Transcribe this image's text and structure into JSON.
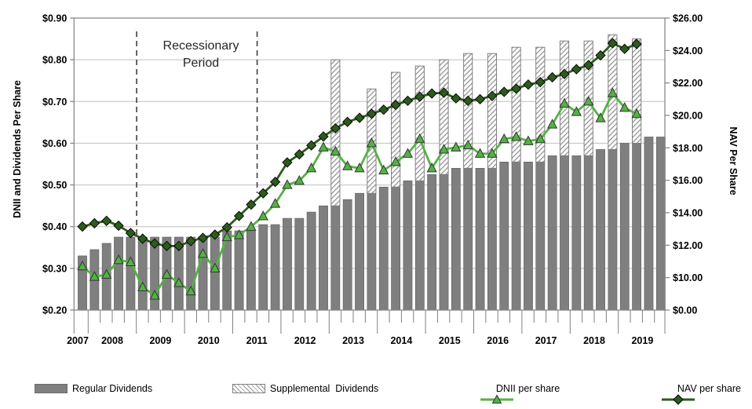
{
  "chart_data": {
    "type": "combo-bar-line",
    "title": "",
    "ylabel_left": "DNII and Dividends Per Share",
    "ylabel_right": "NAV Per Share",
    "left_axis": {
      "min": 0.2,
      "max": 0.9,
      "step": 0.1,
      "tick_labels": [
        "$0.90",
        "$0.80",
        "$0.70",
        "$0.60",
        "$0.50",
        "$0.40",
        "$0.30",
        "$0.20"
      ]
    },
    "right_axis": {
      "tick_labels": [
        "$26.00",
        "$24.00",
        "$22.00",
        "$20.00",
        "$18.00",
        "$16.00",
        "$14.00",
        "$12.00",
        "$10.00",
        "$0.00"
      ],
      "note": "axis is broken below $10.00; bottom tick shows $0.00",
      "step": 2.0,
      "top_value": 26.0
    },
    "years": [
      "2007",
      "2008",
      "2009",
      "2010",
      "2011",
      "2012",
      "2013",
      "2014",
      "2015",
      "2016",
      "2017",
      "2018",
      "2019"
    ],
    "quarters": [
      "2007Q4",
      "2008Q1",
      "2008Q2",
      "2008Q3",
      "2008Q4",
      "2009Q1",
      "2009Q2",
      "2009Q3",
      "2009Q4",
      "2010Q1",
      "2010Q2",
      "2010Q3",
      "2010Q4",
      "2011Q1",
      "2011Q2",
      "2011Q3",
      "2011Q4",
      "2012Q1",
      "2012Q2",
      "2012Q3",
      "2012Q4",
      "2013Q1",
      "2013Q2",
      "2013Q3",
      "2013Q4",
      "2014Q1",
      "2014Q2",
      "2014Q3",
      "2014Q4",
      "2015Q1",
      "2015Q2",
      "2015Q3",
      "2015Q4",
      "2016Q1",
      "2016Q2",
      "2016Q3",
      "2016Q4",
      "2017Q1",
      "2017Q2",
      "2017Q3",
      "2017Q4",
      "2018Q1",
      "2018Q2",
      "2018Q3",
      "2018Q4",
      "2019Q1",
      "2019Q2",
      "2019Q3",
      "2019Q4"
    ],
    "series": [
      {
        "name": "Regular Dividends",
        "type": "bar",
        "axis": "left",
        "color": "#7f7f7f",
        "values": [
          0.33,
          0.345,
          0.36,
          0.375,
          0.375,
          0.375,
          0.375,
          0.375,
          0.375,
          0.375,
          0.375,
          0.375,
          0.39,
          0.39,
          0.39,
          0.405,
          0.405,
          0.42,
          0.42,
          0.435,
          0.45,
          0.45,
          0.465,
          0.48,
          0.48,
          0.495,
          0.495,
          0.51,
          0.51,
          0.525,
          0.525,
          0.54,
          0.54,
          0.54,
          0.54,
          0.555,
          0.555,
          0.555,
          0.555,
          0.57,
          0.57,
          0.57,
          0.57,
          0.585,
          0.585,
          0.6,
          0.6,
          0.615,
          0.615
        ]
      },
      {
        "name": "Supplemental Dividends",
        "type": "bar-stacked",
        "axis": "left",
        "style": "white-with-gray-diagonal-hatch",
        "values": [
          0,
          0,
          0,
          0,
          0,
          0,
          0,
          0,
          0,
          0,
          0,
          0,
          0,
          0,
          0,
          0,
          0,
          0,
          0,
          0,
          0,
          0.35,
          0,
          0,
          0.25,
          0,
          0.275,
          0,
          0.275,
          0,
          0.275,
          0,
          0.275,
          0,
          0.275,
          0,
          0.275,
          0,
          0.275,
          0,
          0.275,
          0,
          0.275,
          0,
          0.275,
          0,
          0.25,
          0,
          0
        ]
      },
      {
        "name": "DNII per share",
        "type": "line",
        "marker": "triangle",
        "axis": "left",
        "color": "#54b244",
        "values": [
          0.305,
          0.28,
          0.285,
          0.32,
          0.315,
          0.255,
          0.235,
          0.285,
          0.265,
          0.245,
          0.335,
          0.3,
          0.375,
          0.38,
          0.4,
          0.425,
          0.455,
          0.5,
          0.51,
          0.54,
          0.59,
          0.58,
          0.545,
          0.54,
          0.6,
          0.535,
          0.555,
          0.575,
          0.61,
          0.54,
          0.585,
          0.59,
          0.595,
          0.575,
          0.575,
          0.61,
          0.615,
          0.605,
          0.61,
          0.645,
          0.695,
          0.675,
          0.7,
          0.66,
          0.72,
          0.685,
          0.67
        ]
      },
      {
        "name": "NAV per share",
        "type": "line",
        "marker": "diamond",
        "axis": "right",
        "color": "#2d5a1d",
        "values": [
          13.15,
          13.35,
          13.5,
          13.2,
          12.75,
          12.4,
          12.1,
          11.95,
          11.95,
          12.25,
          12.45,
          12.65,
          13.1,
          13.8,
          14.5,
          15.2,
          15.9,
          17.1,
          17.6,
          18.15,
          18.7,
          19.2,
          19.6,
          19.85,
          20.1,
          20.35,
          20.65,
          20.9,
          21.15,
          21.35,
          21.4,
          21.05,
          20.9,
          21.0,
          21.2,
          21.45,
          21.65,
          21.9,
          22.05,
          22.35,
          22.55,
          22.85,
          23.1,
          23.7,
          24.45,
          24.1,
          24.4
        ]
      }
    ],
    "annotation": {
      "line1": "Recessionary",
      "line2": "Period",
      "from_after_quarter_index": 4,
      "to_after_quarter_index": 14
    },
    "colors": {
      "grid": "#bfbfbf",
      "border": "#808080",
      "bar_regular": "#7f7f7f",
      "hatch_line": "#949494",
      "dnii_line": "#54b244",
      "nav_line": "#2d5a1d",
      "text": "#000000",
      "annotation_text": "#262626",
      "dash_line": "#3f3f3f"
    },
    "grid": true,
    "legend_position": "bottom"
  },
  "legend": {
    "items": [
      {
        "label": "Regular Dividends",
        "swatch": "solid-gray-bar"
      },
      {
        "label": "Supplemental  Dividends",
        "swatch": "hatched-bar"
      },
      {
        "label": "DNII per share",
        "swatch": "green-line-triangle"
      },
      {
        "label": "NAV per share",
        "swatch": "dark-green-line-diamond"
      }
    ]
  }
}
